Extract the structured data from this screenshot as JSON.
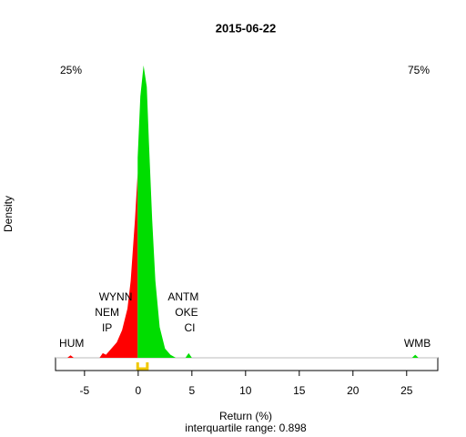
{
  "chart_data": {
    "type": "density",
    "title": "2015-06-22",
    "x_label": "Return (%)",
    "y_label": "Density",
    "subtitle": "interquartile range: 0.898",
    "left_quantile_label": "25%",
    "right_quantile_label": "75%",
    "left_color": "#ff0000",
    "right_color": "#00dd00",
    "xlim": [
      -7.7,
      27.9
    ],
    "ylim": [
      0,
      1
    ],
    "xticks": [
      -5,
      0,
      5,
      10,
      15,
      20,
      25
    ],
    "series": [
      {
        "color": "#ff0000",
        "x": [
          -6.6,
          -6.3,
          -6.0,
          -6.0,
          -3.6,
          -3.3,
          -3.0,
          -2.5,
          -2.0,
          -1.5,
          -1.0,
          -0.7,
          -0.3,
          -0.05
        ],
        "values": [
          0,
          0.008,
          0,
          null,
          0,
          0.015,
          0.01,
          0.03,
          0.05,
          0.09,
          0.16,
          0.25,
          0.45,
          0.6
        ]
      },
      {
        "color": "#00dd00",
        "x": [
          -0.05,
          0.2,
          0.5,
          0.8,
          1.0,
          1.3,
          1.6,
          2.0,
          2.5,
          3.0,
          3.5,
          3.5,
          4.4,
          4.7,
          5.0,
          5.0,
          25.5,
          25.8,
          26.1
        ],
        "values": [
          0.65,
          0.85,
          0.95,
          0.88,
          0.7,
          0.45,
          0.25,
          0.1,
          0.03,
          0.01,
          0,
          null,
          0,
          0.015,
          0,
          null,
          0,
          0.01,
          0
        ]
      }
    ],
    "iqr": {
      "range": [
        -0.05,
        0.848
      ],
      "color": "#f0c800"
    },
    "annotations": [
      {
        "text": "HUM",
        "x": -6.2
      },
      {
        "text": "WYNN",
        "x": -2.1
      },
      {
        "text": "NEM",
        "x": -2.9
      },
      {
        "text": "IP",
        "x": -2.9
      },
      {
        "text": "ANTM",
        "x": 4.2
      },
      {
        "text": "OKE",
        "x": 4.5
      },
      {
        "text": "CI",
        "x": 4.8
      },
      {
        "text": "WMB",
        "x": 26.0
      }
    ]
  }
}
